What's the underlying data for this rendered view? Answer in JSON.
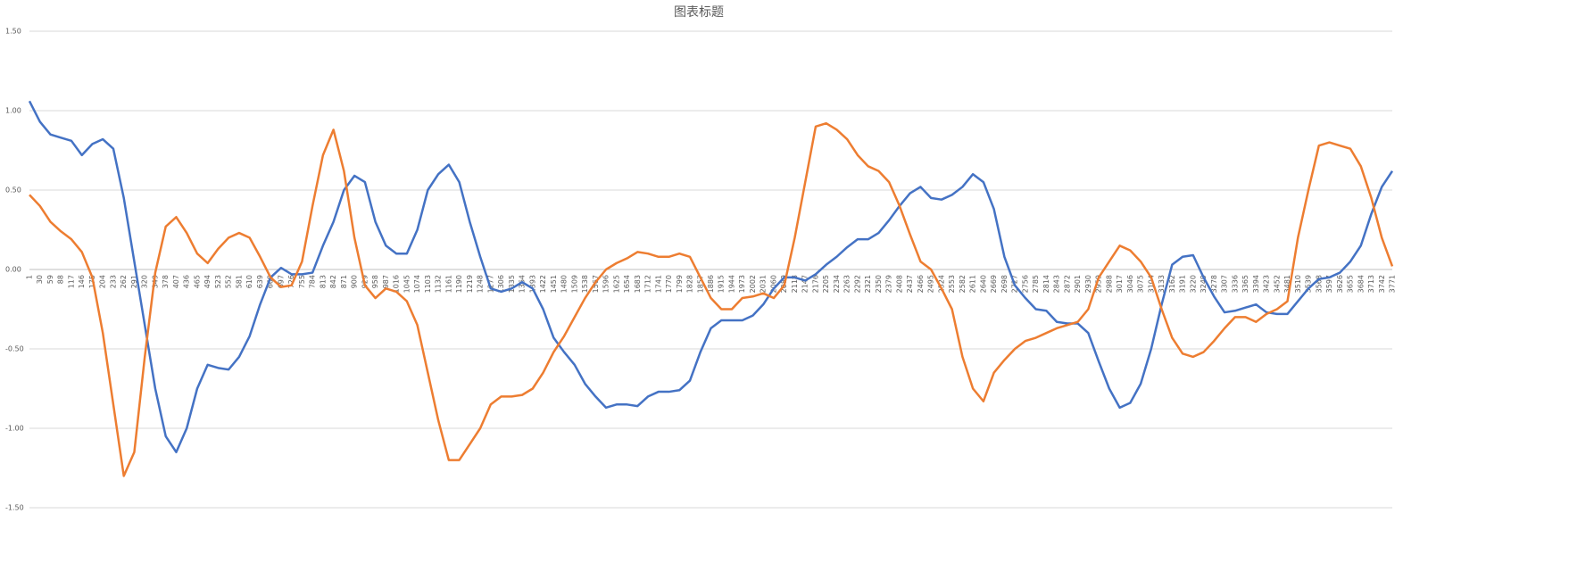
{
  "chart_data": {
    "type": "line",
    "title": "图表标题",
    "categories": [
      1,
      30,
      59,
      88,
      117,
      146,
      175,
      204,
      233,
      262,
      291,
      320,
      349,
      378,
      407,
      436,
      465,
      494,
      523,
      552,
      581,
      610,
      639,
      668,
      697,
      726,
      755,
      784,
      813,
      842,
      871,
      900,
      929,
      958,
      987,
      1016,
      1045,
      1074,
      1103,
      1132,
      1161,
      1190,
      1219,
      1248,
      1277,
      1306,
      1335,
      1364,
      1393,
      1422,
      1451,
      1480,
      1509,
      1538,
      1567,
      1596,
      1625,
      1654,
      1683,
      1712,
      1741,
      1770,
      1799,
      1828,
      1857,
      1886,
      1915,
      1944,
      1973,
      2002,
      2031,
      2060,
      2089,
      2118,
      2147,
      2176,
      2205,
      2234,
      2263,
      2292,
      2321,
      2350,
      2379,
      2408,
      2437,
      2466,
      2495,
      2524,
      2553,
      2582,
      2611,
      2640,
      2669,
      2698,
      2727,
      2756,
      2785,
      2814,
      2843,
      2872,
      2901,
      2930,
      2959,
      2988,
      3017,
      3046,
      3075,
      3104,
      3133,
      3162,
      3191,
      3220,
      3249,
      3278,
      3307,
      3336,
      3365,
      3394,
      3423,
      3452,
      3481,
      3510,
      3539,
      3568,
      3597,
      3626,
      3655,
      3684,
      3713,
      3742,
      3771
    ],
    "series": [
      {
        "color": "#4472c4",
        "values": [
          1.06,
          0.93,
          0.85,
          0.83,
          0.81,
          0.72,
          0.79,
          0.82,
          0.76,
          0.45,
          0.05,
          -0.35,
          -0.75,
          -1.05,
          -1.15,
          -1.0,
          -0.75,
          -0.6,
          -0.62,
          -0.63,
          -0.55,
          -0.42,
          -0.22,
          -0.05,
          0.01,
          -0.03,
          -0.03,
          -0.02,
          0.15,
          0.3,
          0.5,
          0.59,
          0.55,
          0.3,
          0.15,
          0.1,
          0.1,
          0.25,
          0.5,
          0.6,
          0.66,
          0.55,
          0.3,
          0.08,
          -0.12,
          -0.14,
          -0.12,
          -0.08,
          -0.12,
          -0.25,
          -0.43,
          -0.52,
          -0.6,
          -0.72,
          -0.8,
          -0.87,
          -0.85,
          -0.85,
          -0.86,
          -0.8,
          -0.77,
          -0.77,
          -0.76,
          -0.7,
          -0.52,
          -0.37,
          -0.32,
          -0.32,
          -0.32,
          -0.29,
          -0.22,
          -0.12,
          -0.05,
          -0.05,
          -0.07,
          -0.03,
          0.03,
          0.08,
          0.14,
          0.19,
          0.19,
          0.23,
          0.31,
          0.4,
          0.48,
          0.52,
          0.45,
          0.44,
          0.47,
          0.52,
          0.6,
          0.55,
          0.38,
          0.08,
          -0.1,
          -0.18,
          -0.25,
          -0.26,
          -0.33,
          -0.34,
          -0.34,
          -0.4,
          -0.58,
          -0.75,
          -0.87,
          -0.84,
          -0.72,
          -0.5,
          -0.22,
          0.03,
          0.08,
          0.09,
          -0.05,
          -0.17,
          -0.27,
          -0.26,
          -0.24,
          -0.22,
          -0.27,
          -0.28,
          -0.28,
          -0.2,
          -0.12,
          -0.06,
          -0.05,
          -0.02,
          0.05,
          0.15,
          0.35,
          0.52,
          0.62
        ]
      },
      {
        "color": "#ed7d31",
        "values": [
          0.47,
          0.4,
          0.3,
          0.24,
          0.19,
          0.11,
          -0.05,
          -0.4,
          -0.85,
          -1.3,
          -1.15,
          -0.55,
          -0.02,
          0.27,
          0.33,
          0.23,
          0.1,
          0.04,
          0.13,
          0.2,
          0.23,
          0.2,
          0.08,
          -0.05,
          -0.11,
          -0.1,
          0.05,
          0.4,
          0.72,
          0.88,
          0.62,
          0.2,
          -0.1,
          -0.18,
          -0.12,
          -0.14,
          -0.2,
          -0.35,
          -0.65,
          -0.95,
          -1.2,
          -1.2,
          -1.1,
          -1.0,
          -0.85,
          -0.8,
          -0.8,
          -0.79,
          -0.75,
          -0.65,
          -0.52,
          -0.42,
          -0.3,
          -0.18,
          -0.08,
          0.0,
          0.04,
          0.07,
          0.11,
          0.1,
          0.08,
          0.08,
          0.1,
          0.08,
          -0.05,
          -0.18,
          -0.25,
          -0.25,
          -0.18,
          -0.17,
          -0.15,
          -0.18,
          -0.1,
          0.2,
          0.55,
          0.9,
          0.92,
          0.88,
          0.82,
          0.72,
          0.65,
          0.62,
          0.55,
          0.4,
          0.22,
          0.05,
          0.0,
          -0.12,
          -0.25,
          -0.55,
          -0.75,
          -0.83,
          -0.65,
          -0.57,
          -0.5,
          -0.45,
          -0.43,
          -0.4,
          -0.37,
          -0.35,
          -0.33,
          -0.25,
          -0.05,
          0.05,
          0.15,
          0.12,
          0.05,
          -0.05,
          -0.25,
          -0.43,
          -0.53,
          -0.55,
          -0.52,
          -0.45,
          -0.37,
          -0.3,
          -0.3,
          -0.33,
          -0.28,
          -0.25,
          -0.2,
          0.2,
          0.5,
          0.78,
          0.8,
          0.78,
          0.76,
          0.65,
          0.45,
          0.2,
          0.02
        ]
      }
    ],
    "ylim": [
      -1.5,
      1.5
    ],
    "yticks": [
      {
        "value": -1.5,
        "label": "-1.50"
      },
      {
        "value": -1.0,
        "label": "-1.00"
      },
      {
        "value": -0.5,
        "label": "-0.50"
      },
      {
        "value": 0,
        "label": "0.00"
      },
      {
        "value": 0.5,
        "label": "0.50"
      },
      {
        "value": 1.0,
        "label": "1.00"
      },
      {
        "value": 1.5,
        "label": "1.50"
      }
    ],
    "grid": true
  }
}
